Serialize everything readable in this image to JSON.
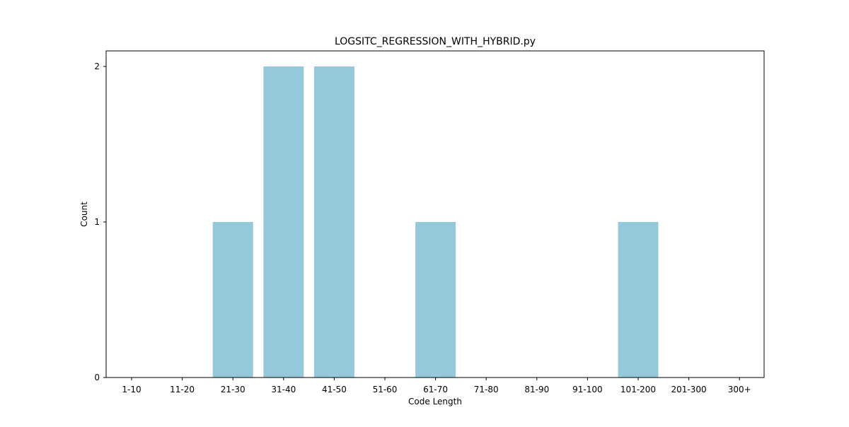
{
  "chart_data": {
    "type": "bar",
    "title": "LOGSITC_REGRESSION_WITH_HYBRID.py",
    "xlabel": "Code Length",
    "ylabel": "Count",
    "categories": [
      "1-10",
      "11-20",
      "21-30",
      "31-40",
      "41-50",
      "51-60",
      "61-70",
      "71-80",
      "81-90",
      "91-100",
      "101-200",
      "201-300",
      "300+"
    ],
    "values": [
      0,
      0,
      1,
      2,
      2,
      0,
      1,
      0,
      0,
      0,
      1,
      0,
      0
    ],
    "ylim": [
      0,
      2.1
    ],
    "yticks": [
      0,
      1,
      2
    ],
    "grid": false,
    "legend": "none",
    "bar_color": "#96c8dc"
  }
}
